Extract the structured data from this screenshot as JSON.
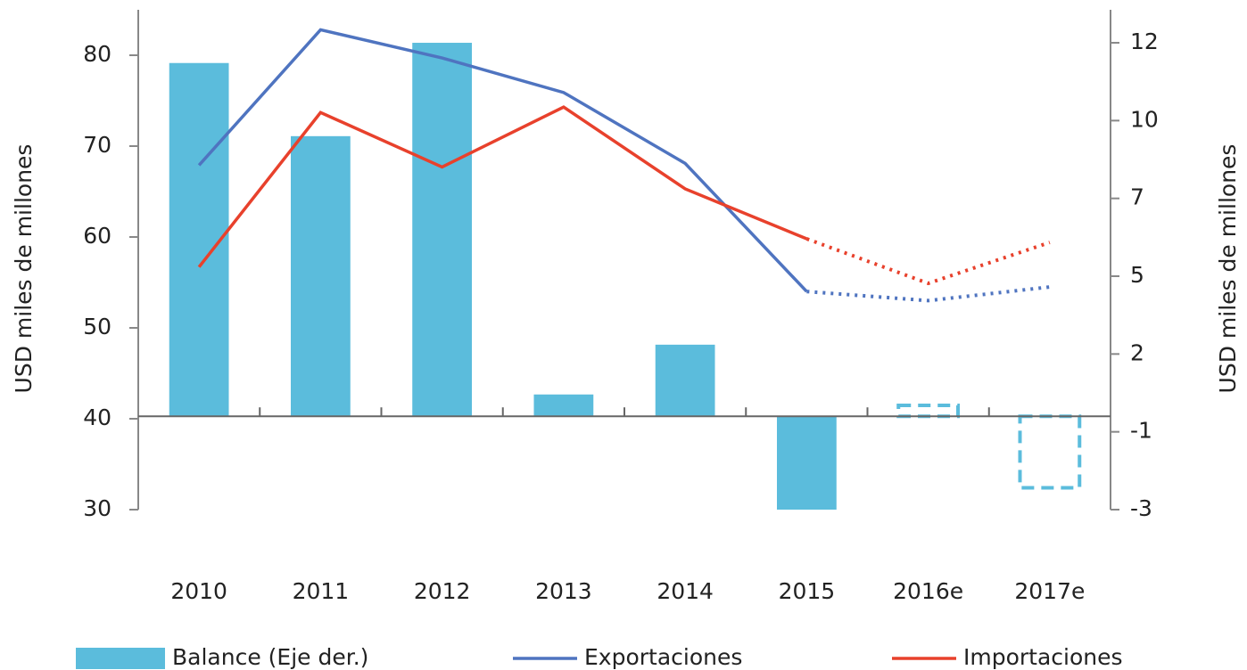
{
  "chart_data": {
    "type": "bar_line",
    "categories": [
      "2010",
      "2011",
      "2012",
      "2013",
      "2014",
      "2015",
      "2016e",
      "2017e"
    ],
    "estimate_start_index": 6,
    "ylabel": "USD miles de millones",
    "y2label": "USD miles de millones",
    "ylim": [
      30,
      85
    ],
    "yticks": [
      30,
      40,
      50,
      60,
      70,
      80
    ],
    "y2lim": [
      -3,
      13.06
    ],
    "y2ticks": [
      -3,
      {
        "value": -0.5,
        "label": "-1"
      },
      2,
      {
        "value": 4.5,
        "label": "5"
      },
      7,
      {
        "value": 9.5,
        "label": "10"
      },
      12
    ],
    "series": [
      {
        "name": "Balance (Eje der.)",
        "type": "bar",
        "axis": "y2",
        "color": "#5bbcdc",
        "values": [
          11.35,
          9.0,
          12.0,
          0.7,
          2.3,
          -3.0,
          0.35,
          -2.3
        ]
      },
      {
        "name": "Exportaciones",
        "type": "line",
        "color": "#4f74c0",
        "values": [
          67.9,
          82.8,
          79.7,
          75.9,
          68.1,
          54.0,
          53.0,
          54.5
        ]
      },
      {
        "name": "Importaciones",
        "type": "line",
        "color": "#e8412c",
        "values": [
          56.7,
          73.7,
          67.7,
          74.3,
          65.3,
          59.8,
          54.9,
          59.4
        ]
      }
    ]
  }
}
